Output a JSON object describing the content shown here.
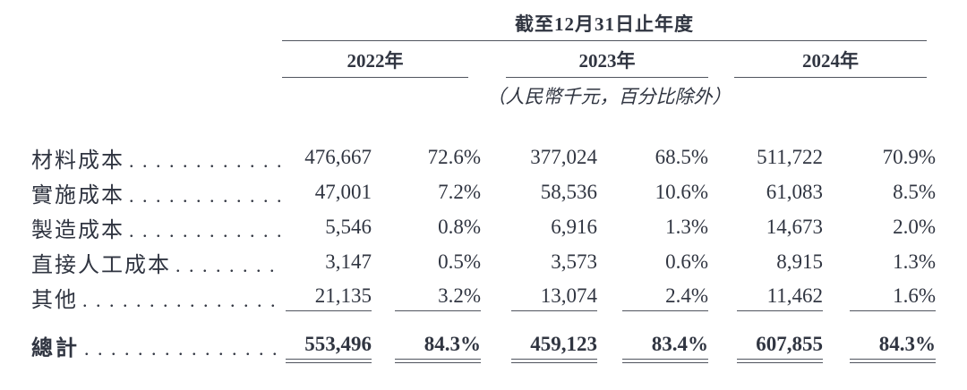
{
  "table": {
    "header": {
      "title": "截至12月31日止年度",
      "years": [
        "2022年",
        "2023年",
        "2024年"
      ],
      "unit_note": "（人民幣千元，百分比除外）"
    },
    "dot_leader": ". . . . . . . . . . . . . . . . . . . . . . . . . . . . . . . . . .",
    "rows": [
      {
        "label": "材料成本",
        "values": [
          "476,667",
          "72.6%",
          "377,024",
          "68.5%",
          "511,722",
          "70.9%"
        ]
      },
      {
        "label": "實施成本",
        "values": [
          "47,001",
          "7.2%",
          "58,536",
          "10.6%",
          "61,083",
          "8.5%"
        ]
      },
      {
        "label": "製造成本",
        "values": [
          "5,546",
          "0.8%",
          "6,916",
          "1.3%",
          "14,673",
          "2.0%"
        ]
      },
      {
        "label": "直接人工成本",
        "values": [
          "3,147",
          "0.5%",
          "3,573",
          "0.6%",
          "8,915",
          "1.3%"
        ]
      },
      {
        "label": "其他",
        "values": [
          "21,135",
          "3.2%",
          "13,074",
          "2.4%",
          "11,462",
          "1.6%"
        ]
      }
    ],
    "total_row": {
      "label": "總計",
      "values": [
        "553,496",
        "84.3%",
        "459,123",
        "83.4%",
        "607,855",
        "84.3%"
      ]
    }
  },
  "colors": {
    "text": "#303541",
    "rule": "#50545e",
    "background": "#ffffff"
  }
}
